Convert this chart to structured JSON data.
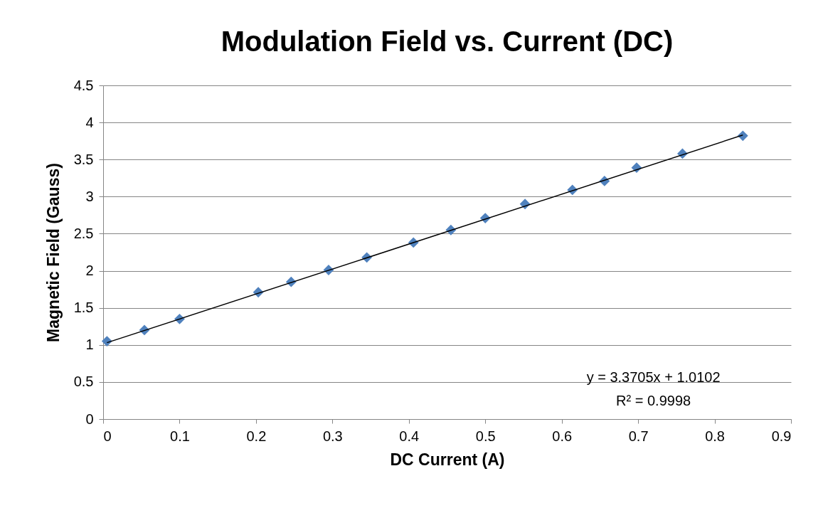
{
  "chart_data": {
    "type": "scatter",
    "title": "Modulation Field vs. Current (DC)",
    "xlabel": "DC Current (A)",
    "ylabel": "Magnetic Field (Gauss)",
    "xlim": [
      0,
      0.9
    ],
    "xticks": [
      0,
      0.1,
      0.2,
      0.3,
      0.4,
      0.5,
      0.6,
      0.7,
      0.8,
      0.9
    ],
    "ylim": [
      0,
      4.5
    ],
    "yticks": [
      0,
      0.5,
      1,
      1.5,
      2,
      2.5,
      3,
      3.5,
      4,
      4.5
    ],
    "grid": "y",
    "annotations": [
      "y = 3.3705x + 1.0102",
      "R² = 0.9998"
    ],
    "series": [
      {
        "marker": "diamond",
        "color": "#4f81bd",
        "x": [
          0.005,
          0.054,
          0.1,
          0.203,
          0.246,
          0.295,
          0.345,
          0.406,
          0.455,
          0.5,
          0.552,
          0.614,
          0.656,
          0.698,
          0.758,
          0.837
        ],
        "values": [
          1.05,
          1.2,
          1.35,
          1.71,
          1.85,
          2.01,
          2.18,
          2.38,
          2.55,
          2.71,
          2.9,
          3.09,
          3.21,
          3.39,
          3.58,
          3.82
        ]
      },
      {
        "type": "line",
        "color": "#000000",
        "x": [
          0.005,
          0.837
        ],
        "values": [
          1.03,
          3.83
        ]
      }
    ]
  }
}
